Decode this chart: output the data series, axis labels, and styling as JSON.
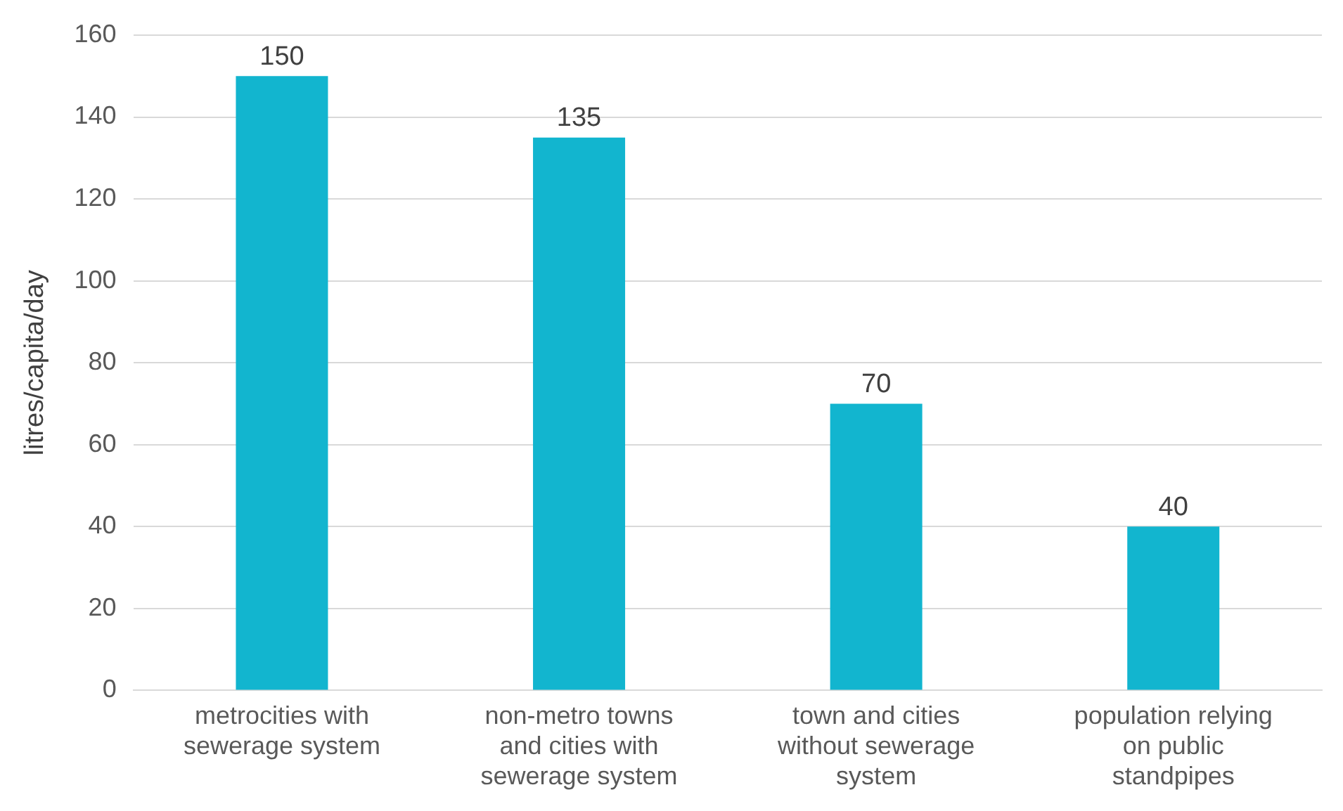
{
  "chart_data": {
    "type": "bar",
    "ylabel": "litres/capita/day",
    "categories": [
      "metrocities with sewerage system",
      "non-metro towns and cities with sewerage system",
      "town and cities without sewerage system",
      "population relying on public standpipes"
    ],
    "values": [
      150,
      135,
      70,
      40
    ],
    "color": "#12b5cf",
    "ylim": [
      0,
      160
    ],
    "yticks": [
      0,
      20,
      40,
      60,
      80,
      100,
      120,
      140,
      160
    ],
    "grid": "y",
    "data_labels": true,
    "legend": false
  }
}
